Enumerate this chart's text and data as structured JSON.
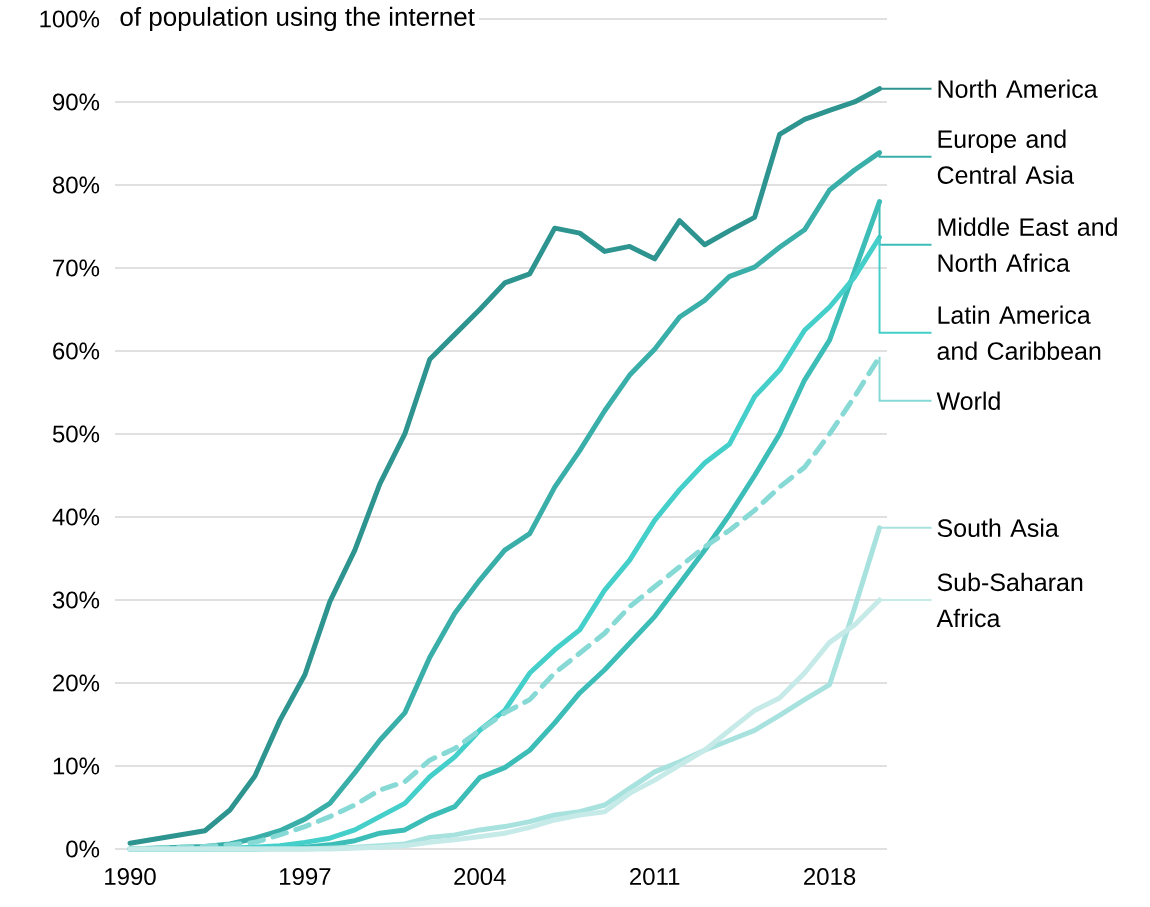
{
  "chart_data": {
    "type": "line",
    "ylabel": "of population using the internet",
    "x": [
      1990,
      1991,
      1992,
      1993,
      1994,
      1995,
      1996,
      1997,
      1998,
      1999,
      2000,
      2001,
      2002,
      2003,
      2004,
      2005,
      2006,
      2007,
      2008,
      2009,
      2010,
      2011,
      2012,
      2013,
      2014,
      2015,
      2016,
      2017,
      2018,
      2019,
      2020
    ],
    "series": [
      {
        "name": "North America",
        "color": "#2e9490",
        "values": [
          0.7,
          1.2,
          1.7,
          2.2,
          4.7,
          8.8,
          15.5,
          21,
          29.8,
          36,
          44,
          50,
          59,
          62,
          65,
          68.2,
          69.3,
          74.8,
          74.2,
          72,
          72.6,
          71.1,
          75.7,
          72.8,
          74.5,
          76.1,
          86.1,
          87.9,
          89,
          90,
          91.6
        ]
      },
      {
        "name": "Europe and Central Asia",
        "color": "#3aafa9",
        "values": [
          0,
          0.1,
          0.2,
          0.3,
          0.6,
          1.3,
          2.2,
          3.6,
          5.5,
          9.2,
          13.1,
          16.4,
          23.1,
          28.4,
          32.4,
          36,
          38,
          43.6,
          48,
          52.8,
          57.1,
          60.2,
          64.1,
          66.1,
          69,
          70.1,
          72.5,
          74.6,
          79.4,
          81.8,
          83.9
        ]
      },
      {
        "name": "Middle East and North Africa",
        "color": "#3dbdb7",
        "values": [
          0,
          0,
          0,
          0,
          0,
          0,
          0.1,
          0.2,
          0.5,
          1,
          1.9,
          2.3,
          3.9,
          5.1,
          8.6,
          9.8,
          11.9,
          15.2,
          18.8,
          21.6,
          24.8,
          28,
          32,
          36,
          40.3,
          45,
          50,
          56.5,
          61.3,
          69.6,
          78
        ]
      },
      {
        "name": "Latin America and Caribbean",
        "color": "#45cfca",
        "values": [
          0,
          0,
          0,
          0,
          0.1,
          0.2,
          0.4,
          0.8,
          1.3,
          2.3,
          3.9,
          5.5,
          8.7,
          11.1,
          14.3,
          16.7,
          21.2,
          24,
          26.4,
          31.2,
          34.8,
          39.6,
          43.3,
          46.5,
          48.8,
          54.5,
          57.7,
          62.5,
          65.3,
          68.9,
          73.7
        ]
      },
      {
        "name": "World",
        "color": "#86d9d5",
        "line_style": "dashed",
        "values": [
          0,
          0.1,
          0.2,
          0.3,
          0.5,
          0.8,
          1.7,
          2.7,
          3.9,
          5.3,
          7.1,
          8.1,
          10.7,
          12.1,
          14.3,
          16.4,
          18,
          21.2,
          23.6,
          26,
          29.2,
          31.6,
          34,
          36.4,
          38.4,
          40.8,
          43.6,
          46,
          50,
          54.5,
          59.3
        ]
      },
      {
        "name": "South Asia",
        "color": "#a8e2df",
        "values": [
          0,
          0,
          0,
          0,
          0,
          0,
          0,
          0,
          0.1,
          0.2,
          0.4,
          0.6,
          1.4,
          1.7,
          2.3,
          2.7,
          3.3,
          4.1,
          4.5,
          5.3,
          7.3,
          9.3,
          10.5,
          11.9,
          13.1,
          14.3,
          16.1,
          18,
          19.8,
          29,
          38.7
        ]
      },
      {
        "name": "Sub-Saharan Africa",
        "color": "#c5eae8",
        "values": [
          0,
          0,
          0,
          0,
          0,
          0,
          0,
          0,
          0,
          0.1,
          0.2,
          0.4,
          0.8,
          1.1,
          1.5,
          1.9,
          2.6,
          3.5,
          4.1,
          4.5,
          6.7,
          8.3,
          10.1,
          11.9,
          14.3,
          16.7,
          18.2,
          21.2,
          24.9,
          27,
          30
        ]
      }
    ],
    "xlim": [
      1989.4,
      2020.3
    ],
    "ylim": [
      0,
      100
    ],
    "xticks": [
      1990,
      1997,
      2004,
      2011,
      2018
    ],
    "yticks": [
      {
        "value": 0,
        "label": "0%"
      },
      {
        "value": 10,
        "label": "10%"
      },
      {
        "value": 20,
        "label": "20%"
      },
      {
        "value": 30,
        "label": "30%"
      },
      {
        "value": 40,
        "label": "40%"
      },
      {
        "value": 50,
        "label": "50%"
      },
      {
        "value": 60,
        "label": "60%"
      },
      {
        "value": 70,
        "label": "70%"
      },
      {
        "value": 80,
        "label": "80%"
      },
      {
        "value": 90,
        "label": "90%"
      },
      {
        "value": 100,
        "label": "100%"
      }
    ],
    "grid": "y",
    "line_style": "solid",
    "legend": "right"
  }
}
